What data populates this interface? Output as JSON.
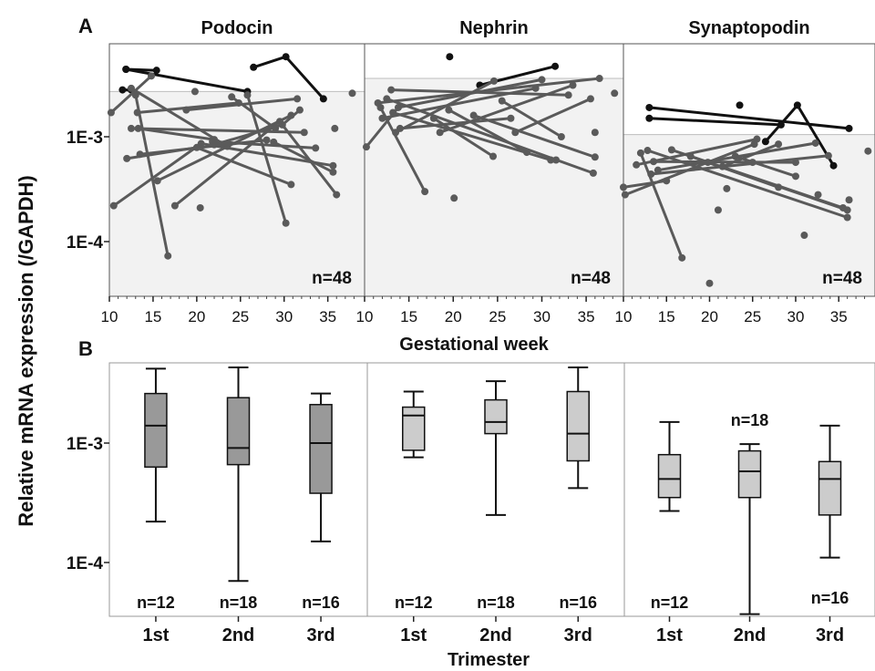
{
  "figure": {
    "panel_labels": [
      "A",
      "B"
    ],
    "ylabel": "Relative  mRNA  expression (/GAPDH)",
    "y_ticks": [
      "1E-3",
      "1E-4"
    ]
  },
  "panel_a": {
    "xlabel": "Gestational week",
    "x_ticks": [
      "10",
      "15",
      "20",
      "25",
      "30",
      "35"
    ],
    "n_label": "n=48"
  },
  "panel_b": {
    "xlabel": "Trimester",
    "categories": [
      "1st",
      "2nd",
      "3rd"
    ]
  },
  "colors": {
    "shade": "#f2f2f2",
    "grey_line": "#5a5a5a",
    "black_line": "#111111",
    "podocin_box": "#999999",
    "other_box": "#cccccc"
  },
  "chart_data": [
    {
      "type": "line",
      "panel": "A",
      "title": "Podocin",
      "xlabel": "Gestational week",
      "ylabel": "Relative  mRNA  expression (/GAPDH)",
      "xlim": [
        10,
        39
      ],
      "ylim": [
        3e-05,
        0.007
      ],
      "y_scale": "log",
      "grid": false,
      "shaded_upper_bound": 0.0027,
      "n_label": "n=48",
      "segments": [
        {
          "x": [
            11.9,
            25.8
          ],
          "y": [
            0.0044,
            0.0027
          ],
          "color": "black"
        },
        {
          "x": [
            11.9,
            15.4
          ],
          "y": [
            0.0044,
            0.0043
          ],
          "color": "black"
        },
        {
          "x": [
            26.5,
            30.2,
            34.5
          ],
          "y": [
            0.0046,
            0.0058,
            0.0023
          ],
          "color": "black"
        },
        {
          "x": [
            11.5,
            12.5
          ],
          "y": [
            0.0028,
            0.0028
          ],
          "color": "black"
        },
        {
          "x": [
            10.2,
            14.8
          ],
          "y": [
            0.0017,
            0.0038
          ],
          "color": "grey"
        },
        {
          "x": [
            12.5,
            23.5
          ],
          "y": [
            0.0029,
            0.00081
          ],
          "color": "grey"
        },
        {
          "x": [
            13.0,
            16.7
          ],
          "y": [
            0.0025,
            7.3e-05
          ],
          "color": "grey"
        },
        {
          "x": [
            13.2,
            24.8
          ],
          "y": [
            0.0017,
            0.0021
          ],
          "color": "grey"
        },
        {
          "x": [
            13.3,
            22.0
          ],
          "y": [
            0.0012,
            0.00094
          ],
          "color": "grey"
        },
        {
          "x": [
            12.5,
            32.3
          ],
          "y": [
            0.0012,
            0.0011
          ],
          "color": "grey"
        },
        {
          "x": [
            13.5,
            28.0
          ],
          "y": [
            0.00068,
            0.00093
          ],
          "color": "grey"
        },
        {
          "x": [
            12.0,
            20.0,
            30.8
          ],
          "y": [
            0.00062,
            0.00079,
            0.00035
          ],
          "color": "grey"
        },
        {
          "x": [
            10.5,
            20.5,
            35.6
          ],
          "y": [
            0.00022,
            0.00086,
            0.00053
          ],
          "color": "grey"
        },
        {
          "x": [
            15.5,
            30.8
          ],
          "y": [
            0.00038,
            0.0016
          ],
          "color": "grey"
        },
        {
          "x": [
            17.5,
            29.5,
            36.0
          ],
          "y": [
            0.00022,
            0.0014,
            0.00028
          ],
          "color": "grey"
        },
        {
          "x": [
            18.8,
            31.5
          ],
          "y": [
            0.0018,
            0.0023
          ],
          "color": "grey"
        },
        {
          "x": [
            22.0,
            29.8,
            31.8
          ],
          "y": [
            0.00084,
            0.0013,
            0.0018
          ],
          "color": "grey"
        },
        {
          "x": [
            25.8,
            30.2
          ],
          "y": [
            0.0025,
            0.00015
          ],
          "color": "grey"
        },
        {
          "x": [
            28.8,
            35.6
          ],
          "y": [
            0.00089,
            0.00046
          ],
          "color": "grey"
        },
        {
          "x": [
            21.8,
            33.6
          ],
          "y": [
            0.0009,
            0.00078
          ],
          "color": "grey"
        },
        {
          "x": [
            24.0,
            29.0
          ],
          "y": [
            0.0024,
            0.0012
          ],
          "color": "grey"
        }
      ],
      "isolated_points": [
        {
          "x": 19.8,
          "y": 0.0027
        },
        {
          "x": 35.8,
          "y": 0.0012
        },
        {
          "x": 37.8,
          "y": 0.0026
        },
        {
          "x": 20.4,
          "y": 0.00021
        }
      ]
    },
    {
      "type": "line",
      "panel": "A",
      "title": "Nephrin",
      "xlabel": "Gestational week",
      "xlim": [
        10,
        39
      ],
      "ylim": [
        3e-05,
        0.007
      ],
      "y_scale": "log",
      "grid": false,
      "shaded_upper_bound": 0.0036,
      "n_label": "n=48",
      "segments": [
        {
          "x": [
            23.0,
            31.5
          ],
          "y": [
            0.0031,
            0.0047
          ],
          "color": "black"
        },
        {
          "x": [
            10.2,
            13.8,
            30.0
          ],
          "y": [
            0.0008,
            0.0019,
            0.0035
          ],
          "color": "grey"
        },
        {
          "x": [
            11.5,
            36.5
          ],
          "y": [
            0.0021,
            0.0036
          ],
          "color": "grey"
        },
        {
          "x": [
            11.8,
            16.8
          ],
          "y": [
            0.0019,
            0.0003
          ],
          "color": "grey"
        },
        {
          "x": [
            12.0,
            29.3
          ],
          "y": [
            0.0015,
            0.0029
          ],
          "color": "grey"
        },
        {
          "x": [
            12.5,
            35.8
          ],
          "y": [
            0.0023,
            0.00045
          ],
          "color": "grey"
        },
        {
          "x": [
            13.0,
            33.0
          ],
          "y": [
            0.0028,
            0.0025
          ],
          "color": "grey"
        },
        {
          "x": [
            13.2,
            31.0
          ],
          "y": [
            0.0017,
            0.0006
          ],
          "color": "grey"
        },
        {
          "x": [
            14.0,
            26.5
          ],
          "y": [
            0.0012,
            0.0015
          ],
          "color": "grey"
        },
        {
          "x": [
            13.5,
            24.6
          ],
          "y": [
            0.0011,
            0.0034
          ],
          "color": "grey"
        },
        {
          "x": [
            18.5,
            33.5
          ],
          "y": [
            0.0011,
            0.0031
          ],
          "color": "grey"
        },
        {
          "x": [
            17.8,
            24.5
          ],
          "y": [
            0.0015,
            0.00065
          ],
          "color": "grey"
        },
        {
          "x": [
            19.5,
            28.3
          ],
          "y": [
            0.0018,
            0.00071
          ],
          "color": "grey"
        },
        {
          "x": [
            22.3,
            36.0
          ],
          "y": [
            0.0016,
            0.00064
          ],
          "color": "grey"
        },
        {
          "x": [
            25.5,
            32.2
          ],
          "y": [
            0.0022,
            0.001
          ],
          "color": "grey"
        },
        {
          "x": [
            27.0,
            35.5
          ],
          "y": [
            0.0011,
            0.0023
          ],
          "color": "grey"
        }
      ],
      "isolated_points": [
        {
          "x": 19.6,
          "y": 0.0058
        },
        {
          "x": 20.1,
          "y": 0.00026
        },
        {
          "x": 38.2,
          "y": 0.0026
        },
        {
          "x": 36.0,
          "y": 0.0011
        },
        {
          "x": 31.6,
          "y": 0.0006
        }
      ]
    },
    {
      "type": "line",
      "panel": "A",
      "title": "Synaptopodin",
      "xlabel": "Gestational week",
      "xlim": [
        10,
        39
      ],
      "ylim": [
        3e-05,
        0.007
      ],
      "y_scale": "log",
      "grid": false,
      "shaded_upper_bound": 0.00105,
      "n_label": "n=48",
      "segments": [
        {
          "x": [
            13.0,
            36.2
          ],
          "y": [
            0.0019,
            0.0012
          ],
          "color": "black"
        },
        {
          "x": [
            13.0,
            28.3
          ],
          "y": [
            0.0015,
            0.0013
          ],
          "color": "black"
        },
        {
          "x": [
            26.5,
            30.2,
            34.4
          ],
          "y": [
            0.0009,
            0.002,
            0.00053
          ],
          "color": "black"
        },
        {
          "x": [
            10.0,
            15.0
          ],
          "y": [
            0.00033,
            0.00038
          ],
          "color": "grey"
        },
        {
          "x": [
            10.2,
            25.2
          ],
          "y": [
            0.00028,
            0.00085
          ],
          "color": "grey"
        },
        {
          "x": [
            11.5,
            25.5
          ],
          "y": [
            0.00054,
            0.00095
          ],
          "color": "grey"
        },
        {
          "x": [
            12.0,
            16.8
          ],
          "y": [
            0.0007,
            7e-05
          ],
          "color": "grey"
        },
        {
          "x": [
            12.8,
            36.0
          ],
          "y": [
            0.00074,
            0.00017
          ],
          "color": "grey"
        },
        {
          "x": [
            13.2,
            33.8
          ],
          "y": [
            0.00044,
            0.00066
          ],
          "color": "grey"
        },
        {
          "x": [
            13.5,
            30.0
          ],
          "y": [
            0.00058,
            0.00057
          ],
          "color": "grey"
        },
        {
          "x": [
            14.0,
            32.3
          ],
          "y": [
            0.00048,
            0.00087
          ],
          "color": "grey"
        },
        {
          "x": [
            15.6,
            35.5
          ],
          "y": [
            0.00075,
            0.00021
          ],
          "color": "grey"
        },
        {
          "x": [
            17.8,
            28.0
          ],
          "y": [
            0.00065,
            0.00033
          ],
          "color": "grey"
        },
        {
          "x": [
            19.8,
            36.0
          ],
          "y": [
            0.00057,
            0.0002
          ],
          "color": "grey"
        },
        {
          "x": [
            21.5,
            28.0
          ],
          "y": [
            0.00052,
            0.00085
          ],
          "color": "grey"
        },
        {
          "x": [
            23.0,
            30.0
          ],
          "y": [
            0.00065,
            0.00042
          ],
          "color": "grey"
        }
      ],
      "isolated_points": [
        {
          "x": 23.5,
          "y": 0.002
        },
        {
          "x": 20.0,
          "y": 4e-05
        },
        {
          "x": 21.0,
          "y": 0.0002
        },
        {
          "x": 31.0,
          "y": 0.000115
        },
        {
          "x": 36.2,
          "y": 0.00025
        },
        {
          "x": 38.4,
          "y": 0.00073
        },
        {
          "x": 22.0,
          "y": 0.00032
        },
        {
          "x": 32.6,
          "y": 0.00028
        },
        {
          "x": 25.0,
          "y": 0.00057
        }
      ]
    },
    {
      "type": "box",
      "panel": "B",
      "title": "",
      "xlabel": "Trimester",
      "ylabel": "Relative  mRNA  expression (/GAPDH)",
      "categories": [
        "1st",
        "2nd",
        "3rd"
      ],
      "ylim": [
        3e-05,
        0.006
      ],
      "y_scale": "log",
      "box_color": "#999999",
      "boxes": [
        {
          "category": "1st",
          "min": 0.00022,
          "q1": 0.00063,
          "median": 0.0014,
          "q3": 0.0026,
          "max": 0.0042,
          "n_label": "n=12"
        },
        {
          "category": "2nd",
          "min": 7e-05,
          "q1": 0.00066,
          "median": 0.00091,
          "q3": 0.0024,
          "max": 0.0043,
          "n_label": "n=18"
        },
        {
          "category": "3rd",
          "min": 0.00015,
          "q1": 0.00038,
          "median": 0.001,
          "q3": 0.0021,
          "max": 0.0026,
          "n_label": "n=16"
        }
      ]
    },
    {
      "type": "box",
      "panel": "B",
      "title": "",
      "xlabel": "Trimester",
      "categories": [
        "1st",
        "2nd",
        "3rd"
      ],
      "ylim": [
        3e-05,
        0.006
      ],
      "y_scale": "log",
      "box_color": "#cccccc",
      "boxes": [
        {
          "category": "1st",
          "min": 0.00076,
          "q1": 0.00087,
          "median": 0.0017,
          "q3": 0.002,
          "max": 0.0027,
          "n_label": "n=12"
        },
        {
          "category": "2nd",
          "min": 0.00025,
          "q1": 0.0012,
          "median": 0.0015,
          "q3": 0.0023,
          "max": 0.0033,
          "n_label": "n=18"
        },
        {
          "category": "3rd",
          "min": 0.00042,
          "q1": 0.00071,
          "median": 0.0012,
          "q3": 0.0027,
          "max": 0.0043,
          "n_label": "n=16"
        }
      ]
    },
    {
      "type": "box",
      "panel": "B",
      "title": "",
      "xlabel": "Trimester",
      "categories": [
        "1st",
        "2nd",
        "3rd"
      ],
      "ylim": [
        3e-05,
        0.006
      ],
      "y_scale": "log",
      "box_color": "#cccccc",
      "boxes": [
        {
          "category": "1st",
          "min": 0.00027,
          "q1": 0.00035,
          "median": 0.0005,
          "q3": 0.0008,
          "max": 0.0015,
          "n_label": "n=12"
        },
        {
          "category": "2nd",
          "min": 3.7e-05,
          "q1": 0.00035,
          "median": 0.00058,
          "q3": 0.00086,
          "max": 0.00098,
          "n_label": "n=18"
        },
        {
          "category": "3rd",
          "min": 0.00011,
          "q1": 0.00025,
          "median": 0.0005,
          "q3": 0.0007,
          "max": 0.0014,
          "n_label": "n=16"
        }
      ]
    }
  ]
}
